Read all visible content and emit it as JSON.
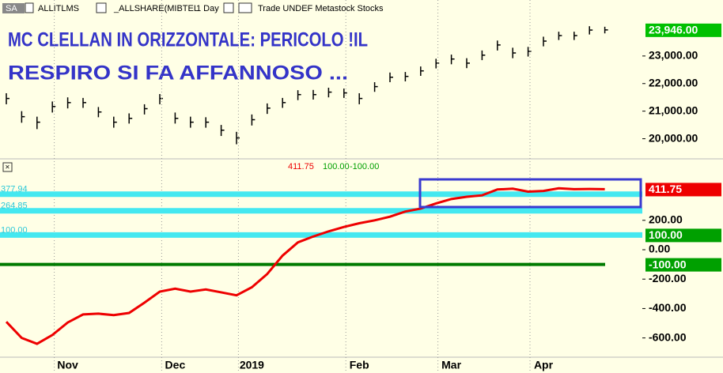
{
  "toolbar": {
    "symbol_box": "SA",
    "symbol": "ALLITLMS",
    "index": "_ALLSHARE(MIBTEL",
    "interval": "1 Day",
    "info": "Trade UNDEF Metastock Stocks"
  },
  "chart_data": [
    {
      "type": "ohlc",
      "title_lines": [
        "MC CLELLAN IN ORIZZONTALE: PERICOLO !IL",
        "RESPIRO SI FA AFFANNOSO ..."
      ],
      "color": "#000000",
      "high": [
        21650,
        21000,
        20800,
        21350,
        21500,
        21480,
        21150,
        20800,
        20920,
        21250,
        21620,
        20950,
        20800,
        20780,
        20500,
        20250,
        20880,
        21280,
        21480,
        21760,
        21770,
        21850,
        21820,
        21650,
        22050,
        22400,
        22420,
        22620,
        22900,
        23050,
        22920,
        23200,
        23560,
        23300,
        23330,
        23700,
        23880,
        23880,
        24080,
        24060
      ],
      "low": [
        21250,
        20580,
        20350,
        20950,
        21100,
        21120,
        20780,
        20400,
        20550,
        20880,
        21250,
        20550,
        20400,
        20400,
        20100,
        19800,
        20480,
        20900,
        21120,
        21400,
        21420,
        21500,
        21480,
        21250,
        21700,
        22050,
        22080,
        22280,
        22550,
        22700,
        22560,
        22850,
        23200,
        22920,
        22980,
        23350,
        23580,
        23580,
        23780,
        23820
      ],
      "close": [
        21460,
        20800,
        20600,
        21170,
        21310,
        21310,
        20970,
        20600,
        20740,
        21090,
        21460,
        20740,
        20600,
        20600,
        20310,
        20030,
        20690,
        21110,
        21310,
        21600,
        21600,
        21690,
        21660,
        21460,
        21890,
        22230,
        22260,
        22460,
        22740,
        22890,
        22740,
        23030,
        23400,
        23110,
        23170,
        23540,
        23740,
        23740,
        23940,
        23946
      ],
      "last_label": "23,946.00",
      "last_color": "#00c000",
      "ylim": [
        19300,
        25030
      ],
      "yticks": [
        {
          "value": 20000,
          "label": "20,000.00"
        },
        {
          "value": 21000,
          "label": "21,000.00"
        },
        {
          "value": 22000,
          "label": "22,000.00"
        },
        {
          "value": 23000,
          "label": "23,000.00"
        }
      ]
    },
    {
      "type": "line",
      "color": "#ee0000",
      "categories": [
        null,
        null,
        null,
        null,
        "Nov",
        null,
        null,
        null,
        null,
        null,
        null,
        "Dec",
        null,
        null,
        null,
        null,
        "2019",
        null,
        null,
        null,
        null,
        null,
        null,
        "Feb",
        null,
        null,
        null,
        null,
        null,
        "Mar",
        null,
        null,
        null,
        null,
        null,
        "Apr",
        null,
        null,
        null,
        null
      ],
      "values": [
        -490,
        -600,
        -640,
        -580,
        -495,
        -440,
        -435,
        -445,
        -430,
        -360,
        -285,
        -265,
        -285,
        -270,
        -290,
        -310,
        -255,
        -165,
        -40,
        50,
        90,
        125,
        155,
        180,
        200,
        225,
        260,
        280,
        315,
        345,
        360,
        370,
        410,
        415,
        395,
        400,
        418,
        412,
        413,
        411.75
      ],
      "last_label": "411.75",
      "legend_labels": [
        "411.75",
        "100.00",
        "-100.00"
      ],
      "legend_colors": [
        "#ee0000",
        "#00a000",
        "#00a000"
      ],
      "levels": [
        {
          "value": 377.94,
          "label": "377.94",
          "color": "#44e8f0"
        },
        {
          "value": 264.85,
          "label": "264.85",
          "color": "#44e8f0"
        },
        {
          "value": 100,
          "label": "100.00",
          "box_label": "100.00",
          "color": "#44e8f0"
        },
        {
          "value": -100,
          "box_label": "-100.00",
          "color": "#007a00"
        }
      ],
      "ylim": [
        -731,
        543
      ],
      "yticks": [
        {
          "value": 200,
          "label": "200.00"
        },
        {
          "value": 0,
          "label": "0.00"
        },
        {
          "value": -200,
          "label": "-200.00"
        },
        {
          "value": -400,
          "label": "-400.00"
        },
        {
          "value": -600,
          "label": "-600.00"
        }
      ]
    }
  ]
}
